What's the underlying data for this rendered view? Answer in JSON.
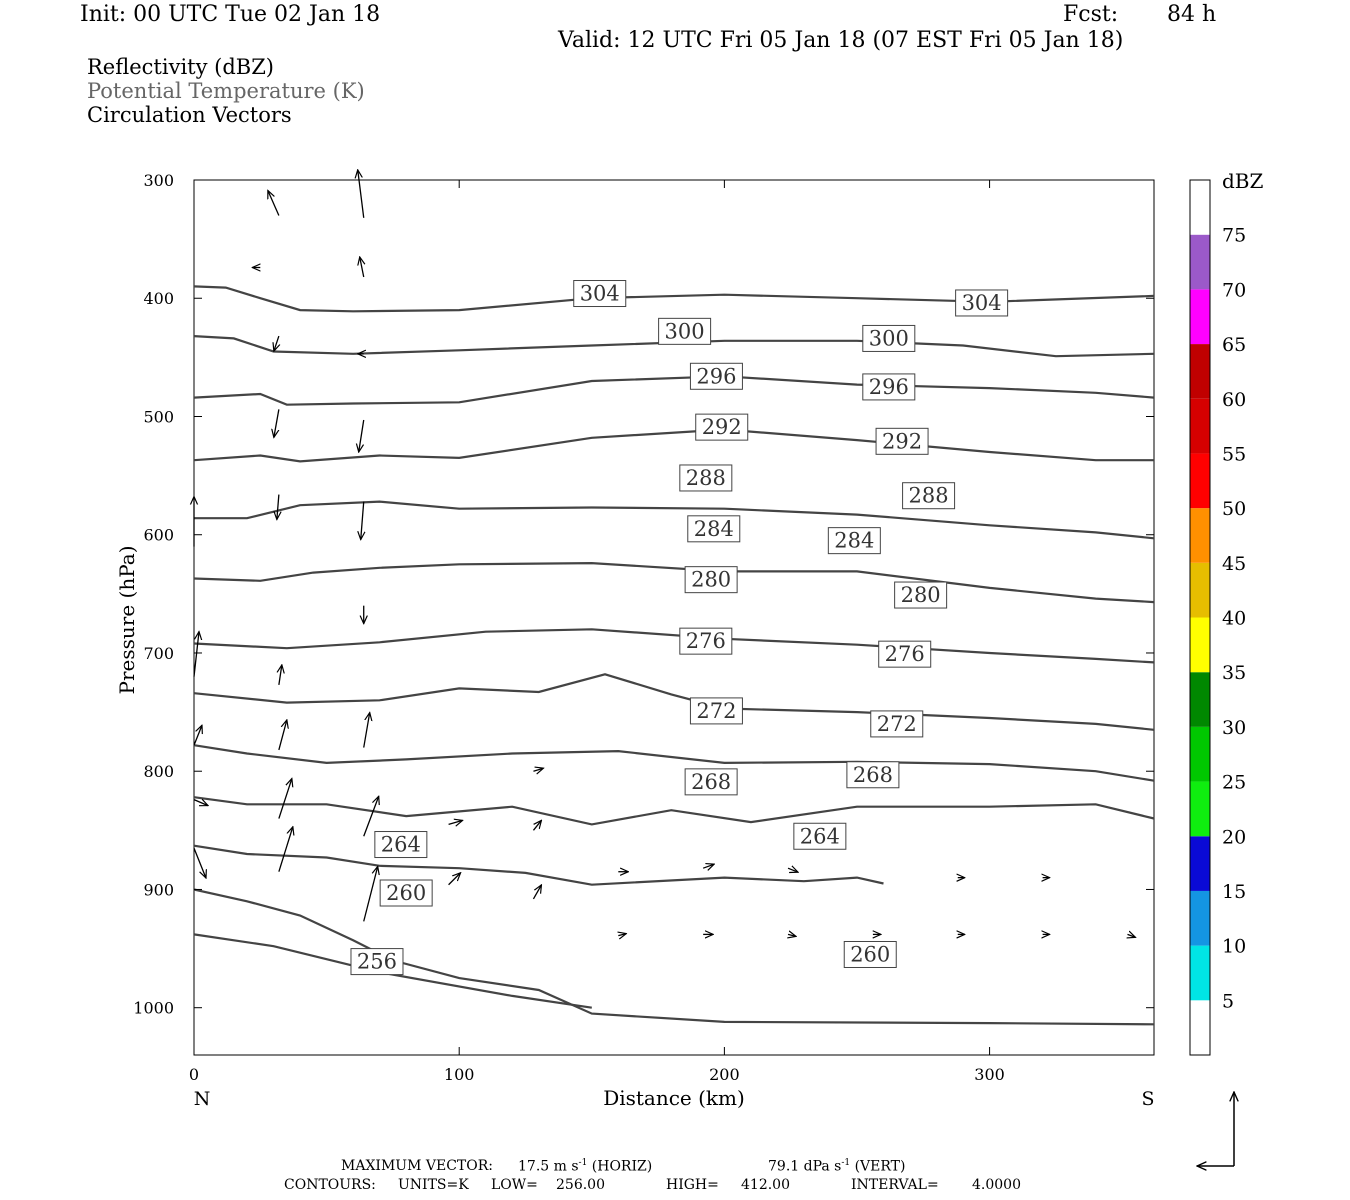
{
  "header": {
    "init": "Init: 00 UTC Tue 02 Jan 18",
    "fcst_label": "Fcst:",
    "fcst_value": "84 h",
    "valid": "Valid: 12 UTC Fri 05 Jan 18 (07 EST Fri 05 Jan 18)"
  },
  "fields": {
    "reflectivity": "Reflectivity (dBZ)",
    "theta": "Potential Temperature (K)",
    "vectors": "Circulation Vectors"
  },
  "footer": {
    "max_vector_label": "MAXIMUM VECTOR:",
    "max_horiz": "17.5 m s",
    "horiz_unit": "(HORIZ)",
    "max_vert": "79.1 dPa s",
    "vert_unit": "(VERT)",
    "exp": "-1",
    "contours_label": "CONTOURS:",
    "units": "UNITS=K",
    "low": "LOW=",
    "low_val": "256.00",
    "high": "HIGH=",
    "high_val": "412.00",
    "interval": "INTERVAL=",
    "interval_val": "4.0000"
  },
  "colors": {
    "contour": "#444444",
    "vector": "#000000",
    "scale": [
      "#ffffff",
      "#00e5e5",
      "#1495e3",
      "#0a0ad6",
      "#0fee0f",
      "#00c800",
      "#008800",
      "#ffff00",
      "#e6be00",
      "#ff9000",
      "#ff0000",
      "#d60000",
      "#c00000",
      "#ff00ff",
      "#9b59c9",
      "#ffffff"
    ]
  },
  "chart_data": {
    "type": "cross-section",
    "xlabel": "Distance (km)",
    "ylabel": "Pressure (hPa)",
    "xlim": [
      0,
      362
    ],
    "ylim": [
      1040,
      300
    ],
    "x_ticks": [
      "0",
      "100",
      "200",
      "300"
    ],
    "y_ticks": [
      "300",
      "400",
      "500",
      "600",
      "700",
      "800",
      "900",
      "1000"
    ],
    "left_endpoint": "N",
    "right_endpoint": "S",
    "colorbar": {
      "title": "dBZ",
      "labels": [
        "5",
        "10",
        "15",
        "20",
        "25",
        "30",
        "35",
        "40",
        "45",
        "50",
        "55",
        "60",
        "65",
        "70",
        "75"
      ]
    },
    "isentropes": [
      {
        "label": "304",
        "points": [
          [
            0,
            390
          ],
          [
            12,
            391
          ],
          [
            25,
            400
          ],
          [
            40,
            410
          ],
          [
            60,
            411
          ],
          [
            100,
            410
          ],
          [
            150,
            400
          ],
          [
            200,
            397
          ],
          [
            250,
            400
          ],
          [
            300,
            403
          ],
          [
            362,
            398
          ]
        ]
      },
      {
        "label": "300",
        "points": [
          [
            0,
            432
          ],
          [
            15,
            434
          ],
          [
            30,
            445
          ],
          [
            60,
            447
          ],
          [
            100,
            444
          ],
          [
            150,
            440
          ],
          [
            200,
            436
          ],
          [
            250,
            436
          ],
          [
            290,
            440
          ],
          [
            325,
            449
          ],
          [
            362,
            447
          ]
        ]
      },
      {
        "label": "296",
        "points": [
          [
            0,
            484
          ],
          [
            25,
            481
          ],
          [
            35,
            490
          ],
          [
            60,
            489
          ],
          [
            100,
            488
          ],
          [
            150,
            470
          ],
          [
            200,
            466
          ],
          [
            250,
            473
          ],
          [
            300,
            476
          ],
          [
            340,
            480
          ],
          [
            362,
            484
          ]
        ]
      },
      {
        "label": "292",
        "points": [
          [
            0,
            537
          ],
          [
            25,
            533
          ],
          [
            40,
            538
          ],
          [
            70,
            533
          ],
          [
            100,
            535
          ],
          [
            150,
            518
          ],
          [
            200,
            511
          ],
          [
            250,
            520
          ],
          [
            300,
            530
          ],
          [
            340,
            537
          ],
          [
            362,
            537
          ]
        ]
      },
      {
        "label": "288",
        "points": [
          [
            0,
            586
          ],
          [
            20,
            586
          ],
          [
            40,
            575
          ],
          [
            70,
            572
          ],
          [
            100,
            578
          ],
          [
            150,
            577
          ],
          [
            200,
            578
          ],
          [
            250,
            583
          ],
          [
            300,
            592
          ],
          [
            340,
            598
          ],
          [
            362,
            603
          ]
        ]
      },
      {
        "label": "284",
        "points": [
          [
            0,
            637
          ],
          [
            25,
            639
          ],
          [
            45,
            632
          ],
          [
            70,
            628
          ],
          [
            100,
            625
          ],
          [
            150,
            624
          ],
          [
            200,
            631
          ],
          [
            250,
            631
          ],
          [
            300,
            645
          ],
          [
            340,
            654
          ],
          [
            362,
            657
          ]
        ]
      },
      {
        "label": "280",
        "points": [
          [
            0,
            692
          ],
          [
            35,
            696
          ],
          [
            70,
            691
          ],
          [
            110,
            682
          ],
          [
            150,
            680
          ],
          [
            200,
            688
          ],
          [
            250,
            693
          ],
          [
            300,
            700
          ],
          [
            340,
            705
          ],
          [
            362,
            708
          ]
        ]
      },
      {
        "label": "276",
        "points": [
          [
            0,
            734
          ],
          [
            35,
            742
          ],
          [
            70,
            740
          ],
          [
            100,
            730
          ],
          [
            130,
            733
          ],
          [
            155,
            718
          ],
          [
            180,
            735
          ],
          [
            200,
            747
          ],
          [
            250,
            750
          ],
          [
            300,
            755
          ],
          [
            340,
            760
          ],
          [
            362,
            765
          ]
        ]
      },
      {
        "label": "272",
        "points": [
          [
            0,
            778
          ],
          [
            20,
            785
          ],
          [
            50,
            793
          ],
          [
            80,
            790
          ],
          [
            120,
            785
          ],
          [
            160,
            783
          ],
          [
            200,
            793
          ],
          [
            250,
            792
          ],
          [
            300,
            794
          ],
          [
            340,
            800
          ],
          [
            362,
            808
          ]
        ]
      },
      {
        "label": "268",
        "points": [
          [
            0,
            822
          ],
          [
            20,
            828
          ],
          [
            50,
            828
          ],
          [
            80,
            838
          ],
          [
            120,
            830
          ],
          [
            150,
            845
          ],
          [
            180,
            833
          ],
          [
            210,
            843
          ],
          [
            250,
            830
          ],
          [
            300,
            830
          ],
          [
            340,
            828
          ],
          [
            362,
            840
          ]
        ]
      },
      {
        "label": "264",
        "points": [
          [
            0,
            863
          ],
          [
            20,
            870
          ],
          [
            50,
            873
          ],
          [
            70,
            880
          ],
          [
            100,
            882
          ],
          [
            125,
            886
          ],
          [
            150,
            896
          ],
          [
            200,
            890
          ],
          [
            230,
            893
          ],
          [
            250,
            890
          ],
          [
            260,
            895
          ]
        ]
      },
      {
        "label": "260",
        "points": [
          [
            0,
            900
          ],
          [
            20,
            910
          ],
          [
            40,
            922
          ],
          [
            60,
            943
          ],
          [
            75,
            960
          ],
          [
            100,
            975
          ],
          [
            130,
            985
          ],
          [
            150,
            1005
          ],
          [
            200,
            1012
          ],
          [
            300,
            1013
          ],
          [
            362,
            1014
          ]
        ]
      },
      {
        "label": "256",
        "points": [
          [
            0,
            938
          ],
          [
            30,
            948
          ],
          [
            70,
            970
          ],
          [
            120,
            990
          ],
          [
            150,
            1000
          ]
        ]
      }
    ],
    "contour_labels": [
      {
        "text": "304",
        "x": 153,
        "p": 396
      },
      {
        "text": "304",
        "x": 297,
        "p": 404
      },
      {
        "text": "300",
        "x": 185,
        "p": 428
      },
      {
        "text": "300",
        "x": 262,
        "p": 434
      },
      {
        "text": "296",
        "x": 197,
        "p": 466
      },
      {
        "text": "296",
        "x": 262,
        "p": 475
      },
      {
        "text": "292",
        "x": 199,
        "p": 509
      },
      {
        "text": "292",
        "x": 267,
        "p": 521
      },
      {
        "text": "288",
        "x": 193,
        "p": 552
      },
      {
        "text": "288",
        "x": 277,
        "p": 567
      },
      {
        "text": "284",
        "x": 196,
        "p": 595
      },
      {
        "text": "284",
        "x": 249,
        "p": 605
      },
      {
        "text": "280",
        "x": 195,
        "p": 638
      },
      {
        "text": "280",
        "x": 274,
        "p": 651
      },
      {
        "text": "276",
        "x": 193,
        "p": 690
      },
      {
        "text": "276",
        "x": 268,
        "p": 701
      },
      {
        "text": "272",
        "x": 197,
        "p": 749
      },
      {
        "text": "272",
        "x": 265,
        "p": 760
      },
      {
        "text": "268",
        "x": 195,
        "p": 809
      },
      {
        "text": "268",
        "x": 256,
        "p": 803
      },
      {
        "text": "264",
        "x": 78,
        "p": 862
      },
      {
        "text": "264",
        "x": 236,
        "p": 855
      },
      {
        "text": "260",
        "x": 80,
        "p": 903
      },
      {
        "text": "260",
        "x": 255,
        "p": 955
      },
      {
        "text": "256",
        "x": 69,
        "p": 961
      }
    ],
    "wind_vectors": [
      {
        "x": 32,
        "p": 330,
        "u": -11,
        "w": -25
      },
      {
        "x": 64,
        "p": 332,
        "u": -6,
        "w": -48
      },
      {
        "x": 25,
        "p": 374,
        "u": -8,
        "w": 0
      },
      {
        "x": 64,
        "p": 382,
        "u": -4,
        "w": -20
      },
      {
        "x": 32,
        "p": 432,
        "u": -5,
        "w": 15
      },
      {
        "x": 64,
        "p": 447,
        "u": -6,
        "w": 0
      },
      {
        "x": 32,
        "p": 494,
        "u": -5,
        "w": 28
      },
      {
        "x": 64,
        "p": 503,
        "u": -5,
        "w": 32
      },
      {
        "x": 32,
        "p": 566,
        "u": -2,
        "w": 25
      },
      {
        "x": 64,
        "p": 572,
        "u": -3,
        "w": 38
      },
      {
        "x": 64,
        "p": 660,
        "u": 0,
        "w": 18
      },
      {
        "x": 0,
        "p": 610,
        "u": 0,
        "w": -50
      },
      {
        "x": 0,
        "p": 720,
        "u": 5,
        "w": -45
      },
      {
        "x": 0,
        "p": 778,
        "u": 8,
        "w": -20
      },
      {
        "x": 0,
        "p": 824,
        "u": 14,
        "w": 6
      },
      {
        "x": 0,
        "p": 865,
        "u": 12,
        "w": 30
      },
      {
        "x": 32,
        "p": 727,
        "u": 3,
        "w": -20
      },
      {
        "x": 32,
        "p": 782,
        "u": 8,
        "w": -30
      },
      {
        "x": 32,
        "p": 840,
        "u": 13,
        "w": -40
      },
      {
        "x": 32,
        "p": 885,
        "u": 14,
        "w": -45
      },
      {
        "x": 64,
        "p": 780,
        "u": 6,
        "w": -35
      },
      {
        "x": 64,
        "p": 855,
        "u": 15,
        "w": -40
      },
      {
        "x": 64,
        "p": 927,
        "u": 14,
        "w": -55
      },
      {
        "x": 96,
        "p": 896,
        "u": 12,
        "w": -12
      },
      {
        "x": 128,
        "p": 908,
        "u": 8,
        "w": -14
      },
      {
        "x": 160,
        "p": 939,
        "u": 8,
        "w": -2
      },
      {
        "x": 192,
        "p": 938,
        "u": 10,
        "w": 0
      },
      {
        "x": 224,
        "p": 938,
        "u": 8,
        "w": 2
      },
      {
        "x": 256,
        "p": 938,
        "u": 8,
        "w": 0
      },
      {
        "x": 288,
        "p": 938,
        "u": 7,
        "w": 0
      },
      {
        "x": 320,
        "p": 938,
        "u": 7,
        "w": 0
      },
      {
        "x": 352,
        "p": 938,
        "u": 8,
        "w": 3
      },
      {
        "x": 160,
        "p": 885,
        "u": 10,
        "w": 0
      },
      {
        "x": 192,
        "p": 882,
        "u": 11,
        "w": -4
      },
      {
        "x": 224,
        "p": 882,
        "u": 10,
        "w": 4
      },
      {
        "x": 288,
        "p": 890,
        "u": 7,
        "w": 0
      },
      {
        "x": 320,
        "p": 890,
        "u": 7,
        "w": 0
      },
      {
        "x": 96,
        "p": 845,
        "u": 14,
        "w": -4
      },
      {
        "x": 128,
        "p": 850,
        "u": 8,
        "w": -10
      },
      {
        "x": 128,
        "p": 800,
        "u": 10,
        "w": -3
      }
    ]
  }
}
